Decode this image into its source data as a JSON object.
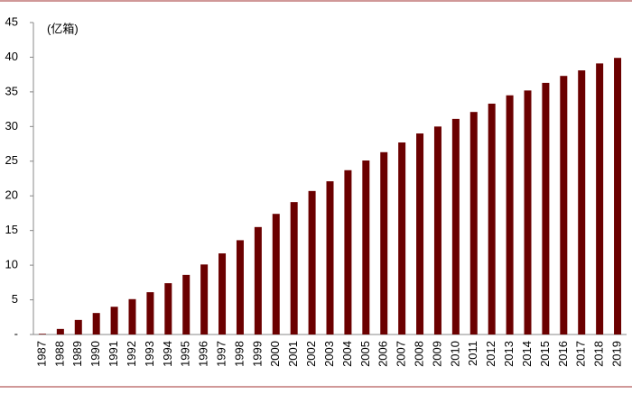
{
  "chart_data": {
    "type": "bar",
    "unit_label": "(亿箱)",
    "categories": [
      "1987",
      "1988",
      "1989",
      "1990",
      "1991",
      "1992",
      "1993",
      "1994",
      "1995",
      "1996",
      "1997",
      "1998",
      "1999",
      "2000",
      "2001",
      "2002",
      "2003",
      "2004",
      "2005",
      "2006",
      "2007",
      "2008",
      "2009",
      "2010",
      "2011",
      "2012",
      "2013",
      "2014",
      "2015",
      "2016",
      "2017",
      "2018",
      "2019"
    ],
    "values": [
      0.1,
      0.8,
      2.1,
      3.1,
      4.0,
      5.1,
      6.1,
      7.4,
      8.6,
      10.1,
      11.7,
      13.6,
      15.5,
      17.4,
      19.1,
      20.7,
      22.1,
      23.7,
      25.1,
      26.3,
      27.7,
      29.0,
      30.0,
      31.1,
      32.1,
      33.3,
      34.5,
      35.2,
      36.3,
      37.3,
      38.1,
      39.1,
      39.9
    ],
    "color": "#6b0000",
    "ylim": [
      0,
      45
    ],
    "yticks": [
      {
        "value": 0,
        "label": "-"
      },
      5,
      10,
      15,
      20,
      25,
      30,
      35,
      40,
      45
    ],
    "grid": false
  }
}
